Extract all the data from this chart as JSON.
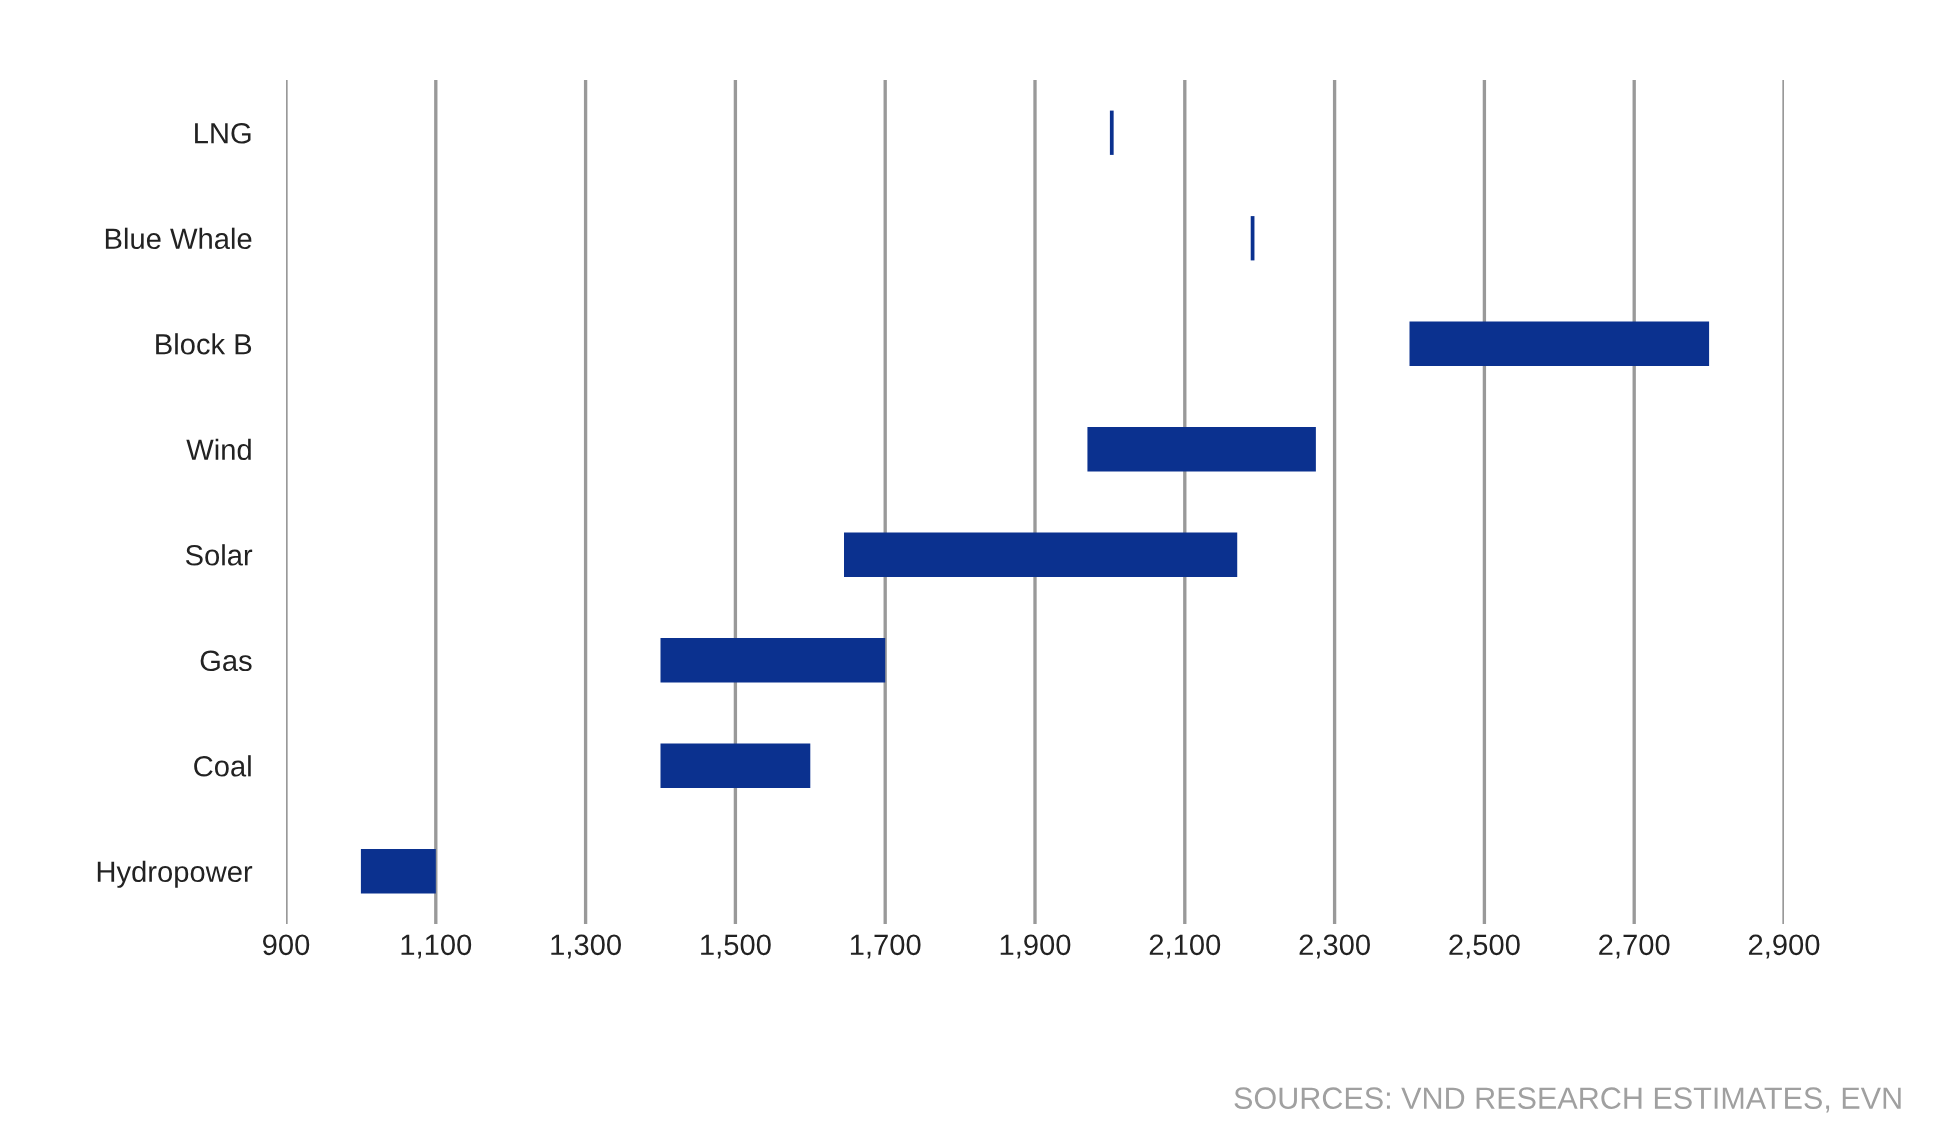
{
  "chart_data": {
    "type": "bar",
    "orientation": "horizontal",
    "categories": [
      "LNG",
      "Blue Whale",
      "Block B",
      "Wind",
      "Solar",
      "Gas",
      "Coal",
      "Hydropower"
    ],
    "base": [
      2000,
      2188,
      2400,
      1970,
      1645,
      1400,
      1400,
      1000
    ],
    "values": [
      5,
      5,
      400,
      305,
      525,
      300,
      200,
      100
    ],
    "color": "#0b318f",
    "xlim": [
      900,
      2900
    ],
    "xticks": [
      {
        "value": 900,
        "label": "900"
      },
      {
        "value": 1100,
        "label": "1,100"
      },
      {
        "value": 1300,
        "label": "1,300"
      },
      {
        "value": 1500,
        "label": "1,500"
      },
      {
        "value": 1700,
        "label": "1,700"
      },
      {
        "value": 1900,
        "label": "1,900"
      },
      {
        "value": 2100,
        "label": "2,100"
      },
      {
        "value": 2300,
        "label": "2,300"
      },
      {
        "value": 2500,
        "label": "2,500"
      },
      {
        "value": 2700,
        "label": "2,700"
      },
      {
        "value": 2900,
        "label": "2,900"
      }
    ],
    "grid": "x",
    "annotations": [
      "SOURCES: VND RESEARCH ESTIMATES, EVN"
    ]
  }
}
